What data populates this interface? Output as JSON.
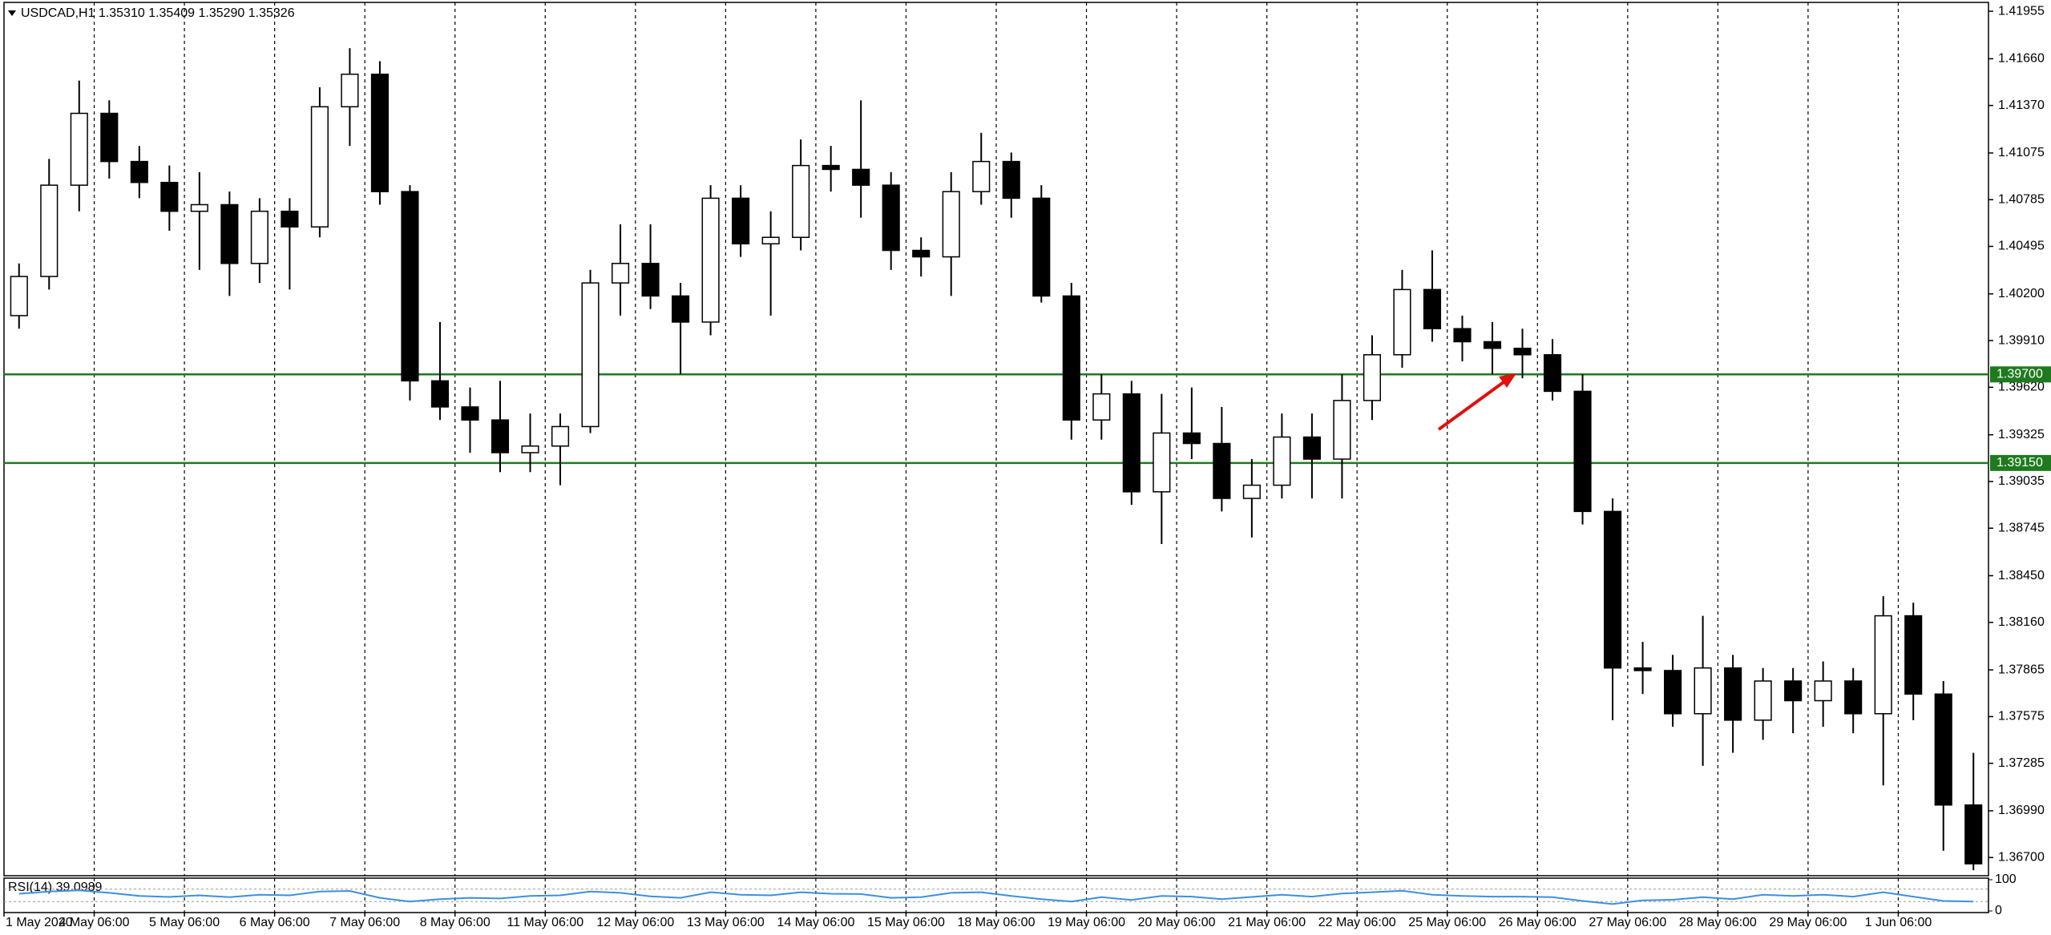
{
  "chart_data": {
    "type": "candlestick",
    "title": "USDCAD,H1  1.35310 1.35409 1.35290 1.35326",
    "categories": [
      "1 May 2020",
      null,
      null,
      "4 May 06:00",
      null,
      null,
      "5 May 06:00",
      null,
      null,
      "6 May 06:00",
      null,
      null,
      "7 May 06:00",
      null,
      null,
      "8 May 06:00",
      null,
      null,
      "11 May 06:00",
      null,
      null,
      "12 May 06:00",
      null,
      null,
      "13 May 06:00",
      null,
      null,
      "14 May 06:00",
      null,
      null,
      "15 May 06:00",
      null,
      null,
      "18 May 06:00",
      null,
      null,
      "19 May 06:00",
      null,
      null,
      "20 May 06:00",
      null,
      null,
      "21 May 06:00",
      null,
      null,
      "22 May 06:00",
      null,
      null,
      "25 May 06:00",
      null,
      null,
      "26 May 06:00",
      null,
      null,
      "27 May 06:00",
      null,
      null,
      "28 May 06:00",
      null,
      null,
      "29 May 06:00",
      null,
      null,
      "1 Jun 06:00",
      null,
      null
    ],
    "open": [
      1.40065,
      1.40308,
      1.40875,
      1.41321,
      1.41022,
      1.40892,
      1.40713,
      1.40754,
      1.40389,
      1.40713,
      1.40616,
      1.41362,
      1.41564,
      1.40835,
      1.3966,
      1.39498,
      1.39417,
      1.39214,
      1.39255,
      1.39376,
      1.40268,
      1.40389,
      1.40187,
      1.40025,
      1.40794,
      1.40511,
      1.40551,
      1.40997,
      1.40973,
      1.40875,
      1.4047,
      1.4043,
      1.40835,
      1.41022,
      1.40794,
      1.40187,
      1.39417,
      1.39579,
      1.38971,
      1.39336,
      1.39271,
      1.3893,
      1.39012,
      1.39311,
      1.39174,
      1.39538,
      1.39822,
      1.40227,
      1.39984,
      1.39903,
      1.39862,
      1.39822,
      1.39595,
      1.38849,
      1.37877,
      1.37861,
      1.37593,
      1.37877,
      1.37553,
      1.37796,
      1.37674,
      1.37796,
      1.37593,
      1.38201,
      1.37715,
      1.37026
    ],
    "high": [
      1.40389,
      1.41038,
      1.41524,
      1.41402,
      1.41119,
      1.40997,
      1.40956,
      1.40835,
      1.40794,
      1.40794,
      1.41483,
      1.41726,
      1.41645,
      1.40875,
      1.40025,
      1.39619,
      1.3966,
      1.39457,
      1.39457,
      1.40349,
      1.40632,
      1.40632,
      1.40268,
      1.40875,
      1.40875,
      1.40713,
      1.41159,
      1.41119,
      1.41402,
      1.40956,
      1.40551,
      1.40956,
      1.412,
      1.41078,
      1.40875,
      1.40268,
      1.397,
      1.3966,
      1.39579,
      1.39619,
      1.39498,
      1.39174,
      1.39457,
      1.39457,
      1.397,
      1.39943,
      1.40349,
      1.4047,
      1.40065,
      1.40025,
      1.39984,
      1.39919,
      1.397,
      1.3893,
      1.38039,
      1.37958,
      1.38201,
      1.37958,
      1.37877,
      1.37877,
      1.37918,
      1.37877,
      1.38323,
      1.38282,
      1.37796,
      1.3735
    ],
    "low": [
      1.39984,
      1.40227,
      1.40713,
      1.40916,
      1.40794,
      1.40592,
      1.40349,
      1.40187,
      1.40268,
      1.40227,
      1.40551,
      1.41119,
      1.40754,
      1.39538,
      1.39417,
      1.39214,
      1.39093,
      1.39093,
      1.39012,
      1.39336,
      1.40065,
      1.40106,
      1.397,
      1.39943,
      1.4043,
      1.40065,
      1.4047,
      1.40835,
      1.40673,
      1.40349,
      1.40308,
      1.40187,
      1.40754,
      1.40673,
      1.40146,
      1.39295,
      1.39295,
      1.3889,
      1.38647,
      1.39174,
      1.38849,
      1.38687,
      1.3893,
      1.3893,
      1.3893,
      1.39417,
      1.39741,
      1.39903,
      1.39781,
      1.397,
      1.39676,
      1.39538,
      1.38768,
      1.37553,
      1.37715,
      1.37512,
      1.37269,
      1.3735,
      1.37431,
      1.37472,
      1.37512,
      1.37472,
      1.37148,
      1.37553,
      1.36742,
      1.36621
    ],
    "close": [
      1.40308,
      1.40875,
      1.41321,
      1.41022,
      1.40892,
      1.40713,
      1.40754,
      1.40389,
      1.40713,
      1.40616,
      1.41362,
      1.41564,
      1.40835,
      1.3966,
      1.39498,
      1.39417,
      1.39214,
      1.39255,
      1.39376,
      1.40268,
      1.40389,
      1.40187,
      1.40025,
      1.40794,
      1.40511,
      1.40551,
      1.40997,
      1.40973,
      1.40875,
      1.4047,
      1.4043,
      1.40835,
      1.41022,
      1.40794,
      1.40187,
      1.39417,
      1.39579,
      1.38971,
      1.39336,
      1.39271,
      1.3893,
      1.39012,
      1.39311,
      1.39174,
      1.39538,
      1.39822,
      1.40227,
      1.39984,
      1.39903,
      1.39862,
      1.39822,
      1.39595,
      1.38849,
      1.37877,
      1.37861,
      1.37593,
      1.37877,
      1.37553,
      1.37796,
      1.37674,
      1.37796,
      1.37593,
      1.38201,
      1.37715,
      1.37026,
      1.36661
    ],
    "up_color": "#ffffff",
    "down_color": "#000000",
    "wick_color": "#000000",
    "ylim": [
      1.36587,
      1.4201
    ],
    "yticks": [
      1.41955,
      {
        "value": 1.4166,
        "label": "1.41660"
      },
      {
        "value": 1.4137,
        "label": "1.41370"
      },
      1.41075,
      1.40785,
      1.40495,
      {
        "value": 1.402,
        "label": "1.40200"
      },
      {
        "value": 1.3991,
        "label": "1.39910"
      },
      {
        "value": 1.3962,
        "label": "1.39620"
      },
      1.39325,
      1.39035,
      1.38745,
      {
        "value": 1.3845,
        "label": "1.38450"
      },
      {
        "value": 1.3816,
        "label": "1.38160"
      },
      1.37865,
      1.37575,
      1.37285,
      {
        "value": 1.3699,
        "label": "1.36990"
      },
      {
        "value": 1.367,
        "label": "1.36700"
      }
    ],
    "grid": true,
    "levels": [
      {
        "value": 1.397,
        "label": "1.39700"
      },
      {
        "value": 1.3915,
        "label": "1.39150"
      }
    ],
    "level_color": "#1f7a1f",
    "indicator": {
      "type": "line",
      "name": "RSI(14) 39.0989",
      "color": "#3c8fe0",
      "values": [
        55,
        62,
        66,
        58,
        48,
        45,
        50,
        44,
        52,
        50,
        62,
        64,
        42,
        30,
        38,
        42,
        40,
        48,
        50,
        62,
        58,
        47,
        42,
        60,
        52,
        50,
        60,
        55,
        54,
        42,
        44,
        58,
        60,
        48,
        38,
        30,
        44,
        35,
        48,
        46,
        38,
        45,
        52,
        46,
        56,
        60,
        65,
        52,
        48,
        46,
        46,
        44,
        32,
        22,
        34,
        36,
        44,
        38,
        52,
        48,
        52,
        46,
        60,
        46,
        32,
        30
      ],
      "ylim": [
        0,
        100
      ],
      "yticks": [
        0,
        100
      ],
      "levels": [
        30,
        70
      ]
    }
  }
}
